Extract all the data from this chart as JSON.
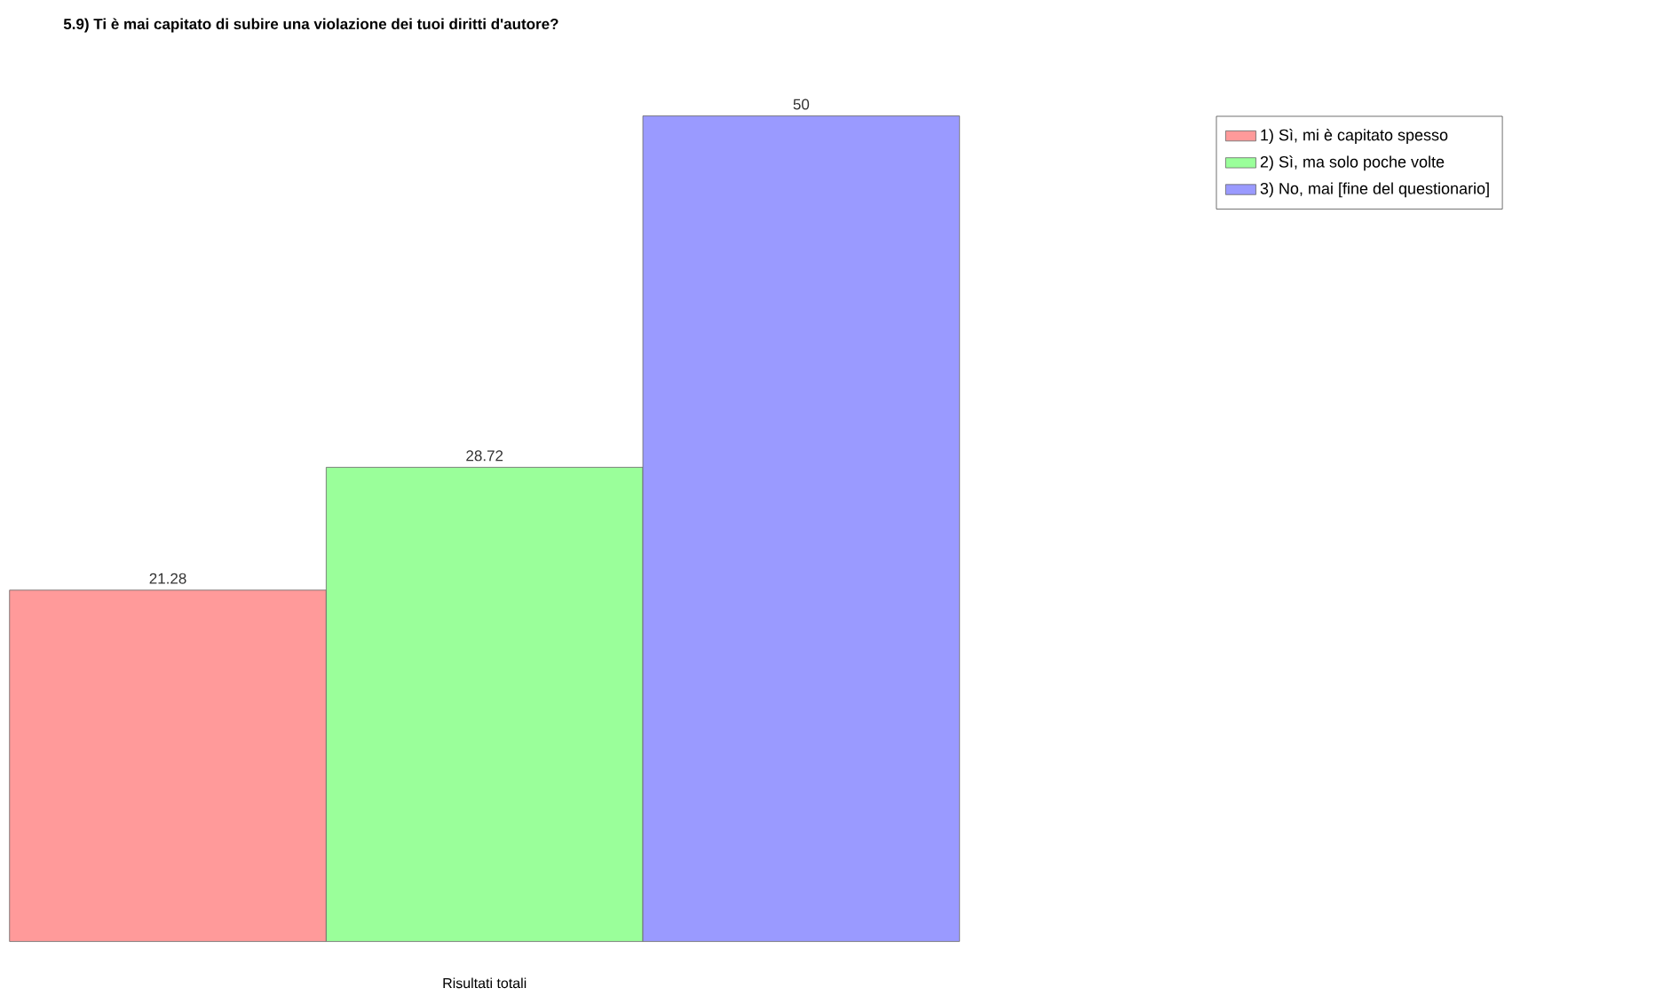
{
  "chart_data": {
    "type": "bar",
    "title": "5.9) Ti è mai capitato di subire una violazione dei tuoi diritti d'autore?",
    "xlabel": "Risultati totali",
    "categories": [
      null
    ],
    "series": [
      {
        "name": "1) Sì, mi è capitato spesso",
        "color": "#ff9a9a",
        "values": [
          21.28
        ]
      },
      {
        "name": "2) Sì, ma solo poche volte",
        "color": "#9aff9a",
        "values": [
          28.72
        ]
      },
      {
        "name": "3) No, mai [fine del questionario]",
        "color": "#9a9aff",
        "values": [
          50
        ]
      }
    ],
    "data_labels": true,
    "legend": "top right"
  }
}
